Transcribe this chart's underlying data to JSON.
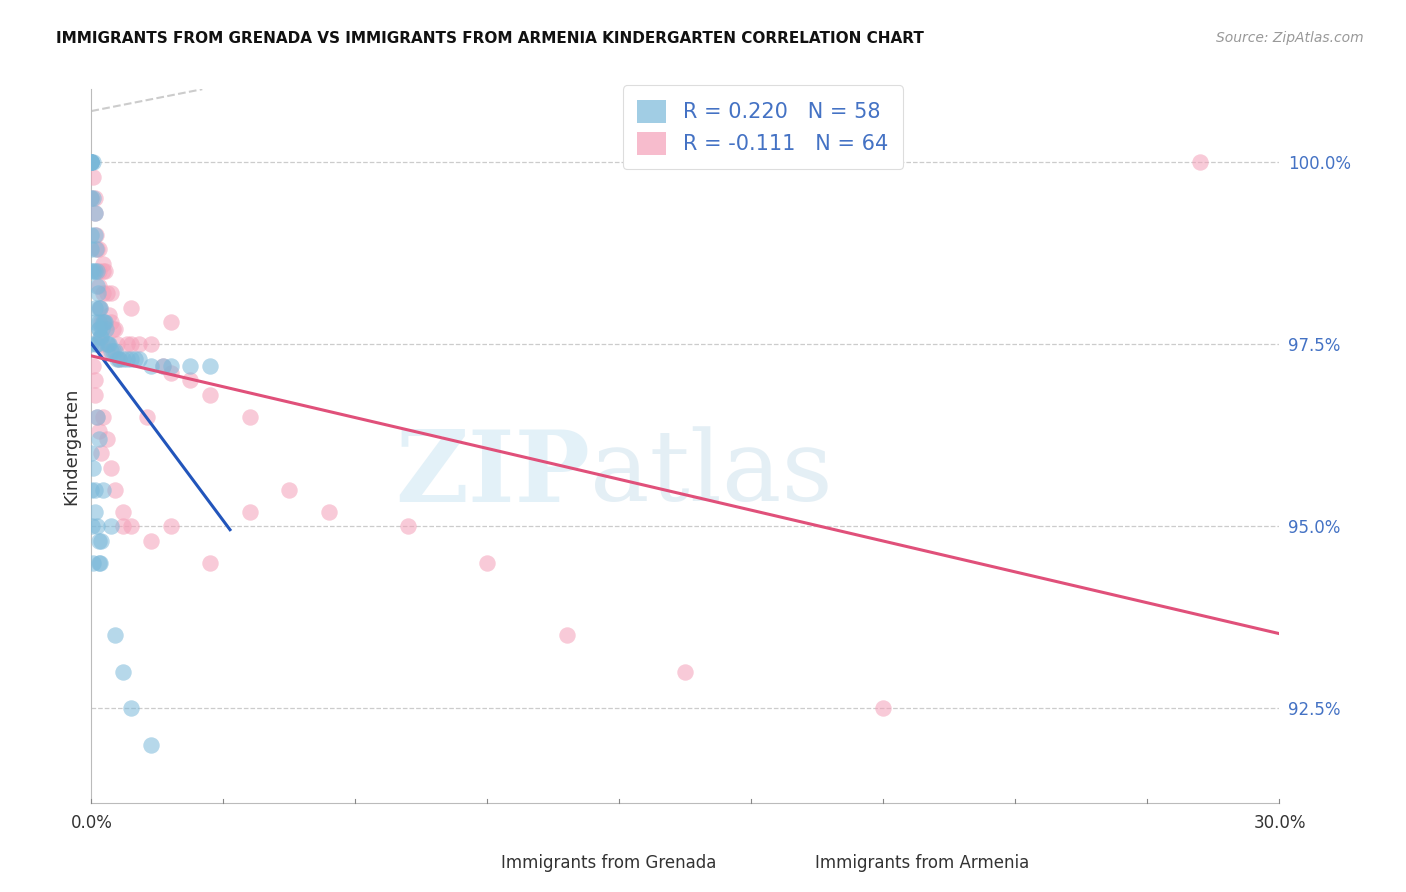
{
  "title": "IMMIGRANTS FROM GRENADA VS IMMIGRANTS FROM ARMENIA KINDERGARTEN CORRELATION CHART",
  "source": "Source: ZipAtlas.com",
  "ylabel": "Kindergarten",
  "xlim": [
    0.0,
    30.0
  ],
  "ylim": [
    91.2,
    101.0
  ],
  "yticks": [
    92.5,
    95.0,
    97.5,
    100.0
  ],
  "grenada_R": 0.22,
  "grenada_N": 58,
  "armenia_R": -0.111,
  "armenia_N": 64,
  "grenada_color": "#7ab8d9",
  "armenia_color": "#f4a0b8",
  "grenada_line_color": "#2255bb",
  "armenia_line_color": "#e0507a",
  "grenada_x": [
    0.0,
    0.0,
    0.0,
    0.0,
    0.0,
    0.0,
    0.0,
    0.0,
    0.0,
    0.0,
    0.05,
    0.05,
    0.05,
    0.08,
    0.08,
    0.1,
    0.1,
    0.1,
    0.12,
    0.12,
    0.13,
    0.15,
    0.15,
    0.17,
    0.18,
    0.18,
    0.2,
    0.2,
    0.22,
    0.22,
    0.25,
    0.28,
    0.3,
    0.32,
    0.35,
    0.38,
    0.4,
    0.42,
    0.45,
    0.5,
    0.55,
    0.6,
    0.65,
    0.7,
    0.8,
    0.9,
    1.0,
    1.1,
    1.2,
    1.5,
    1.8,
    2.0,
    2.5,
    3.0,
    0.15,
    0.2,
    0.3,
    0.5
  ],
  "grenada_y": [
    100.0,
    100.0,
    100.0,
    100.0,
    100.0,
    99.5,
    99.0,
    98.8,
    98.5,
    97.5,
    100.0,
    99.5,
    98.5,
    99.3,
    98.0,
    99.0,
    98.5,
    97.8,
    98.8,
    97.5,
    98.3,
    98.5,
    97.5,
    98.2,
    98.0,
    97.7,
    97.8,
    97.7,
    98.0,
    97.6,
    97.6,
    97.7,
    97.8,
    97.8,
    97.8,
    97.7,
    97.5,
    97.5,
    97.5,
    97.4,
    97.4,
    97.4,
    97.3,
    97.3,
    97.3,
    97.3,
    97.3,
    97.3,
    97.3,
    97.2,
    97.2,
    97.2,
    97.2,
    97.2,
    96.5,
    96.2,
    95.5,
    95.0
  ],
  "grenada_y_extra": [
    95.8,
    95.5,
    95.2,
    95.0,
    94.8,
    94.5,
    94.5,
    94.8,
    93.5,
    93.0,
    92.5,
    92.0,
    96.0,
    95.5,
    95.0,
    94.5
  ],
  "grenada_x_extra": [
    0.05,
    0.08,
    0.1,
    0.15,
    0.18,
    0.22,
    0.2,
    0.25,
    0.6,
    0.8,
    1.0,
    1.5,
    0.0,
    0.0,
    0.02,
    0.05
  ],
  "armenia_x": [
    0.0,
    0.0,
    0.05,
    0.08,
    0.1,
    0.12,
    0.15,
    0.18,
    0.2,
    0.22,
    0.25,
    0.28,
    0.3,
    0.3,
    0.35,
    0.4,
    0.45,
    0.5,
    0.55,
    0.6,
    0.65,
    0.7,
    0.8,
    0.9,
    1.0,
    1.2,
    1.4,
    1.5,
    1.8,
    2.0,
    2.5,
    3.0,
    4.0,
    5.0,
    6.0,
    8.0,
    10.0,
    12.0,
    15.0,
    20.0,
    28.0,
    0.05,
    0.08,
    0.1,
    0.15,
    0.2,
    0.25,
    0.3,
    0.4,
    0.5,
    0.6,
    0.8,
    1.0,
    1.5,
    2.0,
    3.0,
    4.0,
    0.2,
    0.3,
    0.5,
    1.0,
    2.0,
    0.25,
    0.4
  ],
  "armenia_y": [
    100.0,
    99.5,
    99.8,
    99.5,
    99.3,
    99.0,
    98.8,
    98.5,
    98.3,
    98.0,
    97.8,
    97.5,
    98.5,
    98.2,
    98.5,
    98.2,
    97.9,
    97.8,
    97.7,
    97.7,
    97.5,
    97.3,
    95.0,
    97.5,
    97.5,
    97.5,
    96.5,
    97.5,
    97.2,
    97.1,
    97.0,
    96.8,
    96.5,
    95.5,
    95.2,
    95.0,
    94.5,
    93.5,
    93.0,
    92.5,
    100.0,
    97.2,
    97.0,
    96.8,
    96.5,
    96.3,
    96.0,
    96.5,
    96.2,
    95.8,
    95.5,
    95.2,
    95.0,
    94.8,
    95.0,
    94.5,
    95.2,
    98.8,
    98.6,
    98.2,
    98.0,
    97.8,
    97.6,
    97.4
  ]
}
